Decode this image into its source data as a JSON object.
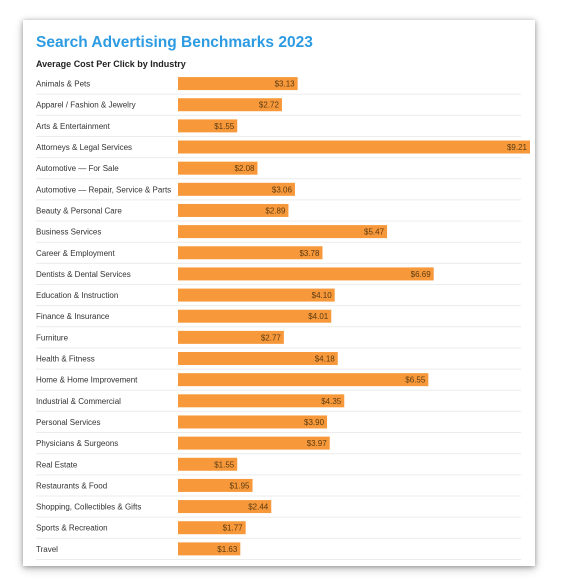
{
  "chart_data": {
    "type": "bar",
    "orientation": "horizontal",
    "title": "Search Advertising Benchmarks 2023",
    "subtitle": "Average Cost Per Click by Industry",
    "xlabel": "",
    "ylabel": "",
    "xlim": [
      0,
      9.21
    ],
    "grid": false,
    "legend": "none",
    "bar_color": "#f7993a",
    "title_color": "#2d9be2",
    "categories": [
      "Animals & Pets",
      "Apparel / Fashion & Jewelry",
      "Arts & Entertainment",
      "Attorneys & Legal Services",
      "Automotive — For Sale",
      "Automotive — Repair, Service & Parts",
      "Beauty & Personal Care",
      "Business Services",
      "Career & Employment",
      "Dentists & Dental Services",
      "Education & Instruction",
      "Finance & Insurance",
      "Furniture",
      "Health & Fitness",
      "Home & Home Improvement",
      "Industrial & Commercial",
      "Personal Services",
      "Physicians & Surgeons",
      "Real Estate",
      "Restaurants & Food",
      "Shopping, Collectibles & Gifts",
      "Sports & Recreation",
      "Travel"
    ],
    "values": [
      3.13,
      2.72,
      1.55,
      9.21,
      2.08,
      3.06,
      2.89,
      5.47,
      3.78,
      6.69,
      4.1,
      4.01,
      2.77,
      4.18,
      6.55,
      4.35,
      3.9,
      3.97,
      1.55,
      1.95,
      2.44,
      1.77,
      1.63
    ],
    "value_labels": [
      "$3.13",
      "$2.72",
      "$1.55",
      "$9.21",
      "$2.08",
      "$3.06",
      "$2.89",
      "$5.47",
      "$3.78",
      "$6.69",
      "$4.10",
      "$4.01",
      "$2.77",
      "$4.18",
      "$6.55",
      "$4.35",
      "$3.90",
      "$3.97",
      "$1.55",
      "$1.95",
      "$2.44",
      "$1.77",
      "$1.63"
    ]
  }
}
